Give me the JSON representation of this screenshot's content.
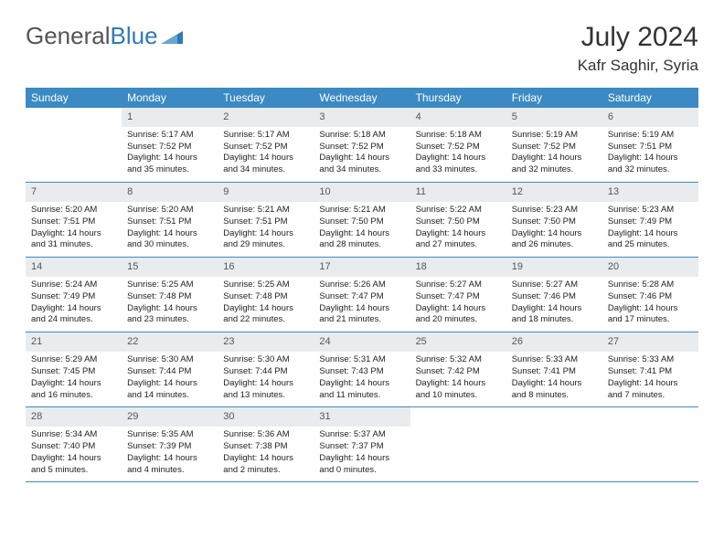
{
  "logo": {
    "text1": "General",
    "text2": "Blue"
  },
  "title": "July 2024",
  "subtitle": "Kafr Saghir, Syria",
  "day_headers": [
    "Sunday",
    "Monday",
    "Tuesday",
    "Wednesday",
    "Thursday",
    "Friday",
    "Saturday"
  ],
  "header_bg": "#3b8ac4",
  "daynum_bg": "#e9ecef",
  "border_color": "#3b8ac4",
  "weeks": [
    [
      {
        "num": "",
        "lines": []
      },
      {
        "num": "1",
        "lines": [
          "Sunrise: 5:17 AM",
          "Sunset: 7:52 PM",
          "Daylight: 14 hours",
          "and 35 minutes."
        ]
      },
      {
        "num": "2",
        "lines": [
          "Sunrise: 5:17 AM",
          "Sunset: 7:52 PM",
          "Daylight: 14 hours",
          "and 34 minutes."
        ]
      },
      {
        "num": "3",
        "lines": [
          "Sunrise: 5:18 AM",
          "Sunset: 7:52 PM",
          "Daylight: 14 hours",
          "and 34 minutes."
        ]
      },
      {
        "num": "4",
        "lines": [
          "Sunrise: 5:18 AM",
          "Sunset: 7:52 PM",
          "Daylight: 14 hours",
          "and 33 minutes."
        ]
      },
      {
        "num": "5",
        "lines": [
          "Sunrise: 5:19 AM",
          "Sunset: 7:52 PM",
          "Daylight: 14 hours",
          "and 32 minutes."
        ]
      },
      {
        "num": "6",
        "lines": [
          "Sunrise: 5:19 AM",
          "Sunset: 7:51 PM",
          "Daylight: 14 hours",
          "and 32 minutes."
        ]
      }
    ],
    [
      {
        "num": "7",
        "lines": [
          "Sunrise: 5:20 AM",
          "Sunset: 7:51 PM",
          "Daylight: 14 hours",
          "and 31 minutes."
        ]
      },
      {
        "num": "8",
        "lines": [
          "Sunrise: 5:20 AM",
          "Sunset: 7:51 PM",
          "Daylight: 14 hours",
          "and 30 minutes."
        ]
      },
      {
        "num": "9",
        "lines": [
          "Sunrise: 5:21 AM",
          "Sunset: 7:51 PM",
          "Daylight: 14 hours",
          "and 29 minutes."
        ]
      },
      {
        "num": "10",
        "lines": [
          "Sunrise: 5:21 AM",
          "Sunset: 7:50 PM",
          "Daylight: 14 hours",
          "and 28 minutes."
        ]
      },
      {
        "num": "11",
        "lines": [
          "Sunrise: 5:22 AM",
          "Sunset: 7:50 PM",
          "Daylight: 14 hours",
          "and 27 minutes."
        ]
      },
      {
        "num": "12",
        "lines": [
          "Sunrise: 5:23 AM",
          "Sunset: 7:50 PM",
          "Daylight: 14 hours",
          "and 26 minutes."
        ]
      },
      {
        "num": "13",
        "lines": [
          "Sunrise: 5:23 AM",
          "Sunset: 7:49 PM",
          "Daylight: 14 hours",
          "and 25 minutes."
        ]
      }
    ],
    [
      {
        "num": "14",
        "lines": [
          "Sunrise: 5:24 AM",
          "Sunset: 7:49 PM",
          "Daylight: 14 hours",
          "and 24 minutes."
        ]
      },
      {
        "num": "15",
        "lines": [
          "Sunrise: 5:25 AM",
          "Sunset: 7:48 PM",
          "Daylight: 14 hours",
          "and 23 minutes."
        ]
      },
      {
        "num": "16",
        "lines": [
          "Sunrise: 5:25 AM",
          "Sunset: 7:48 PM",
          "Daylight: 14 hours",
          "and 22 minutes."
        ]
      },
      {
        "num": "17",
        "lines": [
          "Sunrise: 5:26 AM",
          "Sunset: 7:47 PM",
          "Daylight: 14 hours",
          "and 21 minutes."
        ]
      },
      {
        "num": "18",
        "lines": [
          "Sunrise: 5:27 AM",
          "Sunset: 7:47 PM",
          "Daylight: 14 hours",
          "and 20 minutes."
        ]
      },
      {
        "num": "19",
        "lines": [
          "Sunrise: 5:27 AM",
          "Sunset: 7:46 PM",
          "Daylight: 14 hours",
          "and 18 minutes."
        ]
      },
      {
        "num": "20",
        "lines": [
          "Sunrise: 5:28 AM",
          "Sunset: 7:46 PM",
          "Daylight: 14 hours",
          "and 17 minutes."
        ]
      }
    ],
    [
      {
        "num": "21",
        "lines": [
          "Sunrise: 5:29 AM",
          "Sunset: 7:45 PM",
          "Daylight: 14 hours",
          "and 16 minutes."
        ]
      },
      {
        "num": "22",
        "lines": [
          "Sunrise: 5:30 AM",
          "Sunset: 7:44 PM",
          "Daylight: 14 hours",
          "and 14 minutes."
        ]
      },
      {
        "num": "23",
        "lines": [
          "Sunrise: 5:30 AM",
          "Sunset: 7:44 PM",
          "Daylight: 14 hours",
          "and 13 minutes."
        ]
      },
      {
        "num": "24",
        "lines": [
          "Sunrise: 5:31 AM",
          "Sunset: 7:43 PM",
          "Daylight: 14 hours",
          "and 11 minutes."
        ]
      },
      {
        "num": "25",
        "lines": [
          "Sunrise: 5:32 AM",
          "Sunset: 7:42 PM",
          "Daylight: 14 hours",
          "and 10 minutes."
        ]
      },
      {
        "num": "26",
        "lines": [
          "Sunrise: 5:33 AM",
          "Sunset: 7:41 PM",
          "Daylight: 14 hours",
          "and 8 minutes."
        ]
      },
      {
        "num": "27",
        "lines": [
          "Sunrise: 5:33 AM",
          "Sunset: 7:41 PM",
          "Daylight: 14 hours",
          "and 7 minutes."
        ]
      }
    ],
    [
      {
        "num": "28",
        "lines": [
          "Sunrise: 5:34 AM",
          "Sunset: 7:40 PM",
          "Daylight: 14 hours",
          "and 5 minutes."
        ]
      },
      {
        "num": "29",
        "lines": [
          "Sunrise: 5:35 AM",
          "Sunset: 7:39 PM",
          "Daylight: 14 hours",
          "and 4 minutes."
        ]
      },
      {
        "num": "30",
        "lines": [
          "Sunrise: 5:36 AM",
          "Sunset: 7:38 PM",
          "Daylight: 14 hours",
          "and 2 minutes."
        ]
      },
      {
        "num": "31",
        "lines": [
          "Sunrise: 5:37 AM",
          "Sunset: 7:37 PM",
          "Daylight: 14 hours",
          "and 0 minutes."
        ]
      },
      {
        "num": "",
        "lines": []
      },
      {
        "num": "",
        "lines": []
      },
      {
        "num": "",
        "lines": []
      }
    ]
  ]
}
